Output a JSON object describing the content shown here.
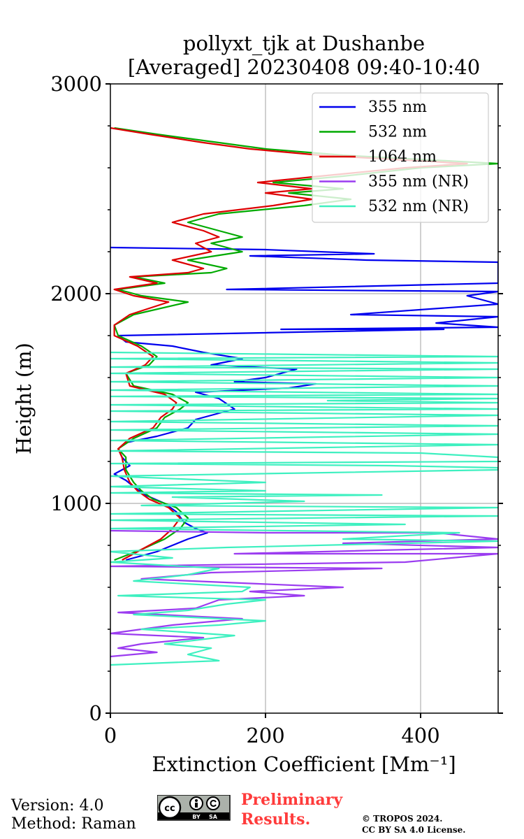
{
  "chart_data": {
    "type": "line",
    "title": "pollyxt_tjk at Dushanbe",
    "subtitle": "[Averaged] 20230408 09:40-10:40",
    "xlabel": "Extinction Coefficient [Mm⁻¹]",
    "ylabel": "Height (m)",
    "xlim": [
      0,
      500
    ],
    "ylim": [
      0,
      3000
    ],
    "xticks": [
      0,
      200,
      400
    ],
    "yticks": [
      0,
      1000,
      2000,
      3000
    ],
    "grid": true,
    "legend_position": "top-right",
    "series": [
      {
        "name": "355 nm",
        "color": "#0000ee",
        "points": [
          [
            20,
            730
          ],
          [
            60,
            770
          ],
          [
            80,
            800
          ],
          [
            100,
            830
          ],
          [
            125,
            860
          ],
          [
            110,
            880
          ],
          [
            95,
            910
          ],
          [
            85,
            960
          ],
          [
            70,
            1000
          ],
          [
            45,
            1040
          ],
          [
            30,
            1080
          ],
          [
            20,
            1110
          ],
          [
            5,
            1140
          ],
          [
            25,
            1180
          ],
          [
            15,
            1220
          ],
          [
            10,
            1260
          ],
          [
            20,
            1290
          ],
          [
            60,
            1320
          ],
          [
            100,
            1360
          ],
          [
            110,
            1400
          ],
          [
            160,
            1450
          ],
          [
            140,
            1500
          ],
          [
            110,
            1530
          ],
          [
            230,
            1550
          ],
          [
            265,
            1570
          ],
          [
            160,
            1580
          ],
          [
            200,
            1600
          ],
          [
            240,
            1640
          ],
          [
            130,
            1660
          ],
          [
            170,
            1690
          ],
          [
            120,
            1720
          ],
          [
            80,
            1750
          ],
          [
            20,
            1770
          ],
          [
            10,
            1800
          ],
          [
            430,
            1830
          ],
          [
            220,
            1830
          ],
          [
            500,
            1840
          ],
          [
            420,
            1860
          ],
          [
            500,
            1890
          ],
          [
            310,
            1900
          ],
          [
            500,
            1950
          ],
          [
            460,
            1990
          ],
          [
            500,
            2010
          ],
          [
            150,
            2020
          ],
          [
            500,
            2050
          ],
          [
            500,
            2150
          ],
          [
            330,
            2160
          ],
          [
            180,
            2180
          ],
          [
            340,
            2190
          ],
          [
            200,
            2210
          ],
          [
            0,
            2220
          ]
        ]
      },
      {
        "name": "532 nm",
        "color": "#00aa00",
        "points": [
          [
            5,
            730
          ],
          [
            40,
            780
          ],
          [
            70,
            830
          ],
          [
            90,
            880
          ],
          [
            100,
            930
          ],
          [
            85,
            980
          ],
          [
            55,
            1020
          ],
          [
            40,
            1060
          ],
          [
            30,
            1100
          ],
          [
            20,
            1160
          ],
          [
            20,
            1220
          ],
          [
            10,
            1260
          ],
          [
            30,
            1310
          ],
          [
            60,
            1360
          ],
          [
            70,
            1410
          ],
          [
            90,
            1450
          ],
          [
            100,
            1480
          ],
          [
            80,
            1520
          ],
          [
            30,
            1560
          ],
          [
            20,
            1620
          ],
          [
            50,
            1660
          ],
          [
            60,
            1700
          ],
          [
            40,
            1750
          ],
          [
            10,
            1800
          ],
          [
            5,
            1850
          ],
          [
            30,
            1900
          ],
          [
            100,
            1960
          ],
          [
            40,
            1990
          ],
          [
            10,
            2020
          ],
          [
            70,
            2050
          ],
          [
            30,
            2080
          ],
          [
            130,
            2100
          ],
          [
            150,
            2120
          ],
          [
            100,
            2160
          ],
          [
            170,
            2200
          ],
          [
            130,
            2240
          ],
          [
            170,
            2270
          ],
          [
            140,
            2300
          ],
          [
            100,
            2340
          ],
          [
            140,
            2380
          ],
          [
            250,
            2420
          ],
          [
            310,
            2450
          ],
          [
            230,
            2480
          ],
          [
            300,
            2500
          ],
          [
            210,
            2530
          ],
          [
            300,
            2560
          ],
          [
            400,
            2600
          ],
          [
            500,
            2620
          ],
          [
            300,
            2660
          ],
          [
            200,
            2690
          ],
          [
            140,
            2720
          ],
          [
            60,
            2760
          ],
          [
            5,
            2790
          ]
        ]
      },
      {
        "name": "1064 nm",
        "color": "#dd0000",
        "points": [
          [
            15,
            730
          ],
          [
            40,
            780
          ],
          [
            65,
            830
          ],
          [
            80,
            880
          ],
          [
            90,
            930
          ],
          [
            75,
            980
          ],
          [
            50,
            1020
          ],
          [
            35,
            1060
          ],
          [
            25,
            1100
          ],
          [
            18,
            1160
          ],
          [
            15,
            1220
          ],
          [
            10,
            1260
          ],
          [
            25,
            1310
          ],
          [
            55,
            1360
          ],
          [
            65,
            1410
          ],
          [
            80,
            1450
          ],
          [
            85,
            1480
          ],
          [
            70,
            1520
          ],
          [
            25,
            1560
          ],
          [
            20,
            1620
          ],
          [
            45,
            1660
          ],
          [
            55,
            1700
          ],
          [
            35,
            1750
          ],
          [
            5,
            1800
          ],
          [
            5,
            1850
          ],
          [
            25,
            1900
          ],
          [
            75,
            1960
          ],
          [
            30,
            1990
          ],
          [
            5,
            2020
          ],
          [
            60,
            2050
          ],
          [
            25,
            2080
          ],
          [
            100,
            2100
          ],
          [
            120,
            2120
          ],
          [
            80,
            2160
          ],
          [
            130,
            2200
          ],
          [
            110,
            2240
          ],
          [
            140,
            2270
          ],
          [
            120,
            2300
          ],
          [
            80,
            2340
          ],
          [
            120,
            2380
          ],
          [
            210,
            2420
          ],
          [
            260,
            2450
          ],
          [
            200,
            2480
          ],
          [
            260,
            2500
          ],
          [
            190,
            2530
          ],
          [
            270,
            2560
          ],
          [
            380,
            2600
          ],
          [
            460,
            2620
          ],
          [
            270,
            2660
          ],
          [
            180,
            2690
          ],
          [
            120,
            2720
          ],
          [
            50,
            2760
          ],
          [
            0,
            2790
          ]
        ]
      },
      {
        "name": "355 nm (NR)",
        "color": "#9b3cf0",
        "points": [
          [
            0,
            270
          ],
          [
            60,
            290
          ],
          [
            10,
            310
          ],
          [
            40,
            330
          ],
          [
            120,
            360
          ],
          [
            0,
            380
          ],
          [
            80,
            420
          ],
          [
            170,
            450
          ],
          [
            10,
            480
          ],
          [
            110,
            500
          ],
          [
            140,
            540
          ],
          [
            250,
            560
          ],
          [
            180,
            580
          ],
          [
            300,
            600
          ],
          [
            40,
            640
          ],
          [
            130,
            670
          ],
          [
            350,
            690
          ],
          [
            0,
            700
          ],
          [
            380,
            720
          ],
          [
            500,
            760
          ],
          [
            160,
            760
          ],
          [
            500,
            790
          ],
          [
            300,
            810
          ],
          [
            500,
            830
          ],
          [
            420,
            860
          ],
          [
            200,
            860
          ],
          [
            0,
            870
          ]
        ]
      },
      {
        "name": "532 nm (NR)",
        "color": "#3ef0c0",
        "points": [
          [
            0,
            230
          ],
          [
            140,
            250
          ],
          [
            100,
            280
          ],
          [
            130,
            310
          ],
          [
            70,
            330
          ],
          [
            160,
            370
          ],
          [
            40,
            400
          ],
          [
            140,
            420
          ],
          [
            200,
            440
          ],
          [
            30,
            470
          ],
          [
            100,
            490
          ],
          [
            150,
            520
          ],
          [
            200,
            540
          ],
          [
            10,
            560
          ],
          [
            170,
            580
          ],
          [
            180,
            600
          ],
          [
            30,
            630
          ],
          [
            100,
            660
          ],
          [
            140,
            690
          ],
          [
            0,
            720
          ],
          [
            80,
            740
          ],
          [
            0,
            770
          ],
          [
            150,
            790
          ],
          [
            500,
            820
          ],
          [
            300,
            830
          ],
          [
            450,
            860
          ],
          [
            0,
            880
          ],
          [
            380,
            900
          ],
          [
            0,
            920
          ],
          [
            500,
            940
          ],
          [
            0,
            950
          ],
          [
            500,
            980
          ],
          [
            40,
            990
          ],
          [
            250,
            1010
          ],
          [
            80,
            1030
          ],
          [
            350,
            1040
          ],
          [
            0,
            1050
          ],
          [
            200,
            1060
          ],
          [
            0,
            1080
          ],
          [
            200,
            1100
          ],
          [
            0,
            1130
          ],
          [
            500,
            1160
          ],
          [
            500,
            1170
          ],
          [
            360,
            1180
          ],
          [
            0,
            1190
          ],
          [
            500,
            1200
          ],
          [
            500,
            1220
          ],
          [
            400,
            1240
          ],
          [
            0,
            1250
          ],
          [
            500,
            1280
          ],
          [
            0,
            1300
          ],
          [
            500,
            1330
          ],
          [
            0,
            1350
          ],
          [
            500,
            1370
          ],
          [
            0,
            1390
          ],
          [
            500,
            1420
          ],
          [
            0,
            1440
          ],
          [
            500,
            1450
          ],
          [
            0,
            1470
          ],
          [
            500,
            1480
          ],
          [
            280,
            1490
          ],
          [
            500,
            1500
          ],
          [
            0,
            1510
          ],
          [
            500,
            1520
          ],
          [
            0,
            1540
          ],
          [
            500,
            1560
          ],
          [
            0,
            1580
          ],
          [
            500,
            1600
          ],
          [
            0,
            1620
          ],
          [
            500,
            1640
          ],
          [
            0,
            1650
          ],
          [
            500,
            1670
          ],
          [
            0,
            1690
          ],
          [
            500,
            1700
          ],
          [
            0,
            1720
          ]
        ]
      }
    ]
  },
  "footer": {
    "version": "Version: 4.0",
    "method": "Method: Raman",
    "prelim_line1": "Preliminary",
    "prelim_line2": "Results.",
    "copyright1": "© TROPOS 2024.",
    "copyright2": "CC BY SA 4.0 License.",
    "license_badge": "cc-by-sa-badge"
  }
}
